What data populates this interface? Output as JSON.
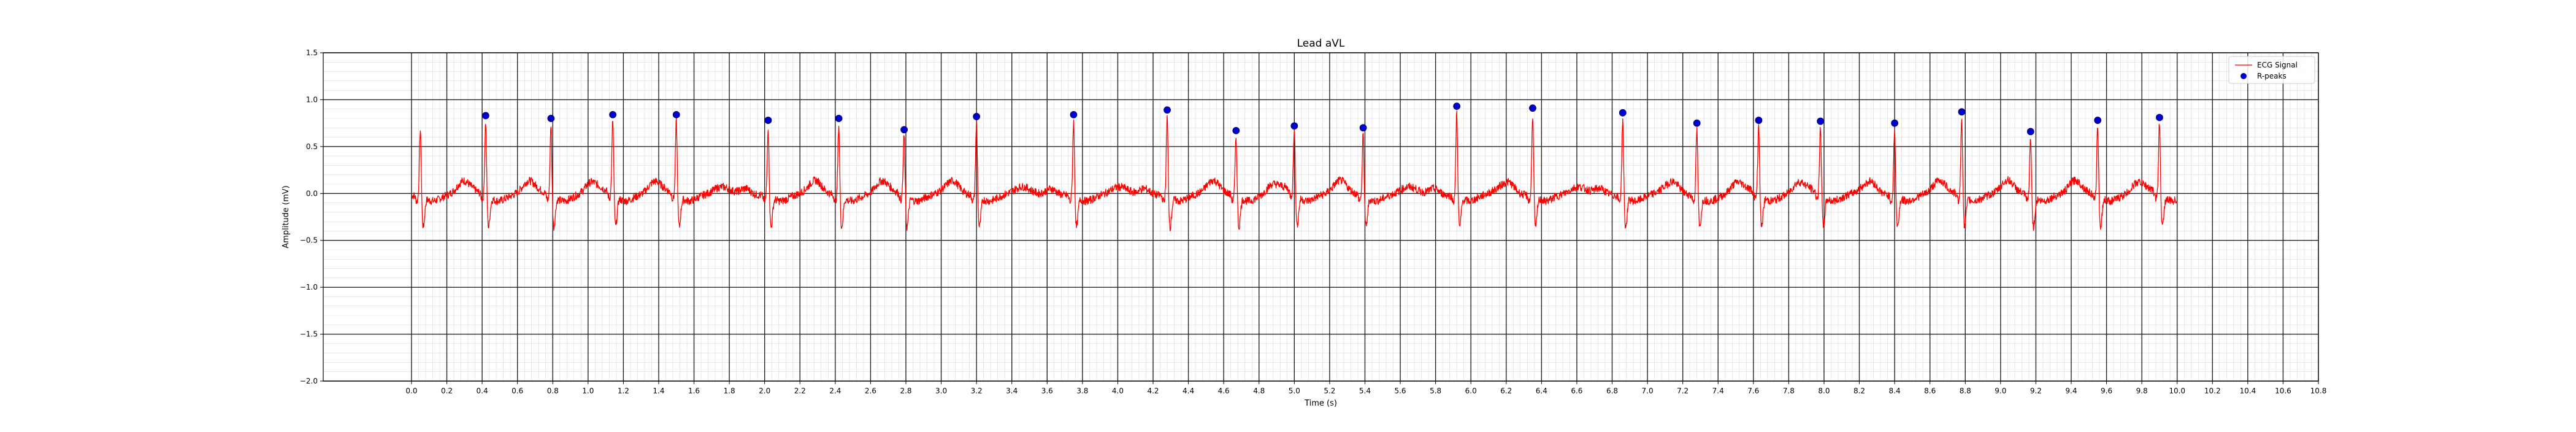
{
  "chart_data": {
    "type": "line",
    "title": "Lead aVL",
    "xlabel": "Time (s)",
    "ylabel": "Amplitude (mV)",
    "xlim": [
      -0.5,
      10.8
    ],
    "ylim": [
      -2.0,
      1.5
    ],
    "grid": true,
    "xticks": [
      0.0,
      0.2,
      0.4,
      0.6,
      0.8,
      1.0,
      1.2,
      1.4,
      1.6,
      1.8,
      2.0,
      2.2,
      2.4,
      2.6,
      2.8,
      3.0,
      3.2,
      3.4,
      3.6,
      3.8,
      4.0,
      4.2,
      4.4,
      4.6,
      4.8,
      5.0,
      5.2,
      5.4,
      5.6,
      5.8,
      6.0,
      6.2,
      6.4,
      6.6,
      6.8,
      7.0,
      7.2,
      7.4,
      7.6,
      7.8,
      8.0,
      8.2,
      8.4,
      8.6,
      8.8,
      9.0,
      9.2,
      9.4,
      9.6,
      9.8,
      10.0,
      10.2,
      10.4,
      10.6,
      10.8
    ],
    "xtick_labels": [
      "0.0",
      "0.2",
      "0.4",
      "0.6",
      "0.8",
      "1.0",
      "1.2",
      "1.4",
      "1.6",
      "1.8",
      "2.0",
      "2.2",
      "2.4",
      "2.6",
      "2.8",
      "3.0",
      "3.2",
      "3.4",
      "3.6",
      "3.8",
      "4.0",
      "4.2",
      "4.4",
      "4.6",
      "4.8",
      "5.0",
      "5.2",
      "5.4",
      "5.6",
      "5.8",
      "6.0",
      "6.2",
      "6.4",
      "6.6",
      "6.8",
      "7.0",
      "7.2",
      "7.4",
      "7.6",
      "7.8",
      "8.0",
      "8.2",
      "8.4",
      "8.6",
      "8.8",
      "9.0",
      "9.2",
      "9.4",
      "9.6",
      "9.8",
      "10.0",
      "10.2",
      "10.4",
      "10.6",
      "10.8"
    ],
    "yticks": [
      -2.0,
      -1.5,
      -1.0,
      -0.5,
      0.0,
      0.5,
      1.0,
      1.5
    ],
    "ytick_labels": [
      "−2.0",
      "−1.5",
      "−1.0",
      "−0.5",
      "0.0",
      "0.5",
      "1.0",
      "1.5"
    ],
    "legend": {
      "location": "top-right",
      "entries": [
        {
          "label": "ECG Signal",
          "marker": "line",
          "color": "#ff0000"
        },
        {
          "label": "R-peaks",
          "marker": "dot",
          "color": "#0000cc"
        }
      ]
    },
    "signal_range": [
      0.0,
      10.0
    ],
    "series": [
      {
        "name": "R-peaks",
        "type": "scatter",
        "color": "#0000cc",
        "x": [
          0.42,
          0.79,
          1.14,
          1.5,
          2.02,
          2.42,
          2.79,
          3.2,
          3.75,
          4.28,
          4.67,
          5.0,
          5.39,
          5.92,
          6.35,
          6.86,
          7.28,
          7.63,
          7.98,
          8.4,
          8.78,
          9.17,
          9.55,
          9.9
        ],
        "y": [
          0.83,
          0.8,
          0.84,
          0.84,
          0.78,
          0.8,
          0.68,
          0.82,
          0.84,
          0.89,
          0.67,
          0.72,
          0.7,
          0.93,
          0.91,
          0.86,
          0.75,
          0.78,
          0.77,
          0.75,
          0.87,
          0.66,
          0.78,
          0.81
        ]
      },
      {
        "name": "ECG Signal",
        "type": "line",
        "color": "#ff0000",
        "first_beat": {
          "x": 0.05,
          "y": 0.75
        }
      }
    ]
  }
}
